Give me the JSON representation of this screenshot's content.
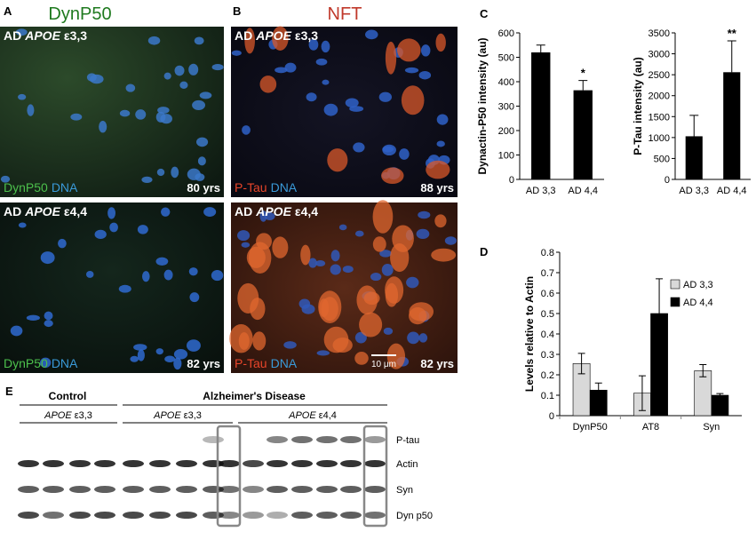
{
  "panels": {
    "a": {
      "label": "A",
      "title": "DynP50",
      "images": [
        {
          "genotype": {
            "group": "AD",
            "gene": "APOE",
            "allele": "ε3,3"
          },
          "stain": [
            "DynP50",
            "DNA"
          ],
          "age": "80 yrs"
        },
        {
          "genotype": {
            "group": "AD",
            "gene": "APOE",
            "allele": "ε4,4"
          },
          "stain": [
            "DynP50",
            "DNA"
          ],
          "age": "82 yrs"
        }
      ]
    },
    "b": {
      "label": "B",
      "title": "NFT",
      "images": [
        {
          "genotype": {
            "group": "AD",
            "gene": "APOE",
            "allele": "ε3,3"
          },
          "stain": [
            "P-Tau",
            "DNA"
          ],
          "age": "88 yrs"
        },
        {
          "genotype": {
            "group": "AD",
            "gene": "APOE",
            "allele": "ε4,4"
          },
          "stain": [
            "P-Tau",
            "DNA"
          ],
          "age": "82 yrs"
        }
      ],
      "scale_bar": "10 μm"
    },
    "c": {
      "label": "C"
    },
    "d": {
      "label": "D"
    },
    "e": {
      "label": "E",
      "groups": [
        "Control",
        "Alzheimer's Disease"
      ],
      "genotypes": [
        {
          "gene": "APOE",
          "allele": "ε3,3"
        },
        {
          "gene": "APOE",
          "allele": "ε3,3"
        },
        {
          "gene": "APOE",
          "allele": "ε4,4"
        }
      ],
      "bands": [
        "P-tau",
        "Actin",
        "Syn",
        "Dyn p50"
      ]
    }
  },
  "chart_data": [
    {
      "type": "bar",
      "ylabel": "Dynactin-P50 intensity (au)",
      "categories": [
        "AD 3,3",
        "AD 4,4"
      ],
      "values": [
        520,
        365
      ],
      "errors": [
        30,
        40
      ],
      "significance": [
        null,
        "*"
      ],
      "color": "#000000",
      "ylim": [
        0,
        600
      ],
      "yticks": [
        0,
        100,
        200,
        300,
        400,
        500,
        600
      ]
    },
    {
      "type": "bar",
      "ylabel": "P-Tau intensity (au)",
      "categories": [
        "AD 3,3",
        "AD 4,4"
      ],
      "values": [
        1030,
        2560
      ],
      "errors": [
        500,
        750
      ],
      "significance": [
        null,
        "**"
      ],
      "color": "#000000",
      "ylim": [
        0,
        3500
      ],
      "yticks": [
        0,
        500,
        1000,
        1500,
        2000,
        2500,
        3000,
        3500
      ]
    },
    {
      "type": "grouped_bar",
      "ylabel": "Levels relative to Actin",
      "categories": [
        "DynP50",
        "AT8",
        "Syn"
      ],
      "series": [
        {
          "name": "AD 3,3",
          "color": "#d9d9d9",
          "values": [
            0.255,
            0.11,
            0.22
          ],
          "errors": [
            0.05,
            0.085,
            0.03
          ]
        },
        {
          "name": "AD 4,4",
          "color": "#000000",
          "values": [
            0.125,
            0.5,
            0.1
          ],
          "errors": [
            0.035,
            0.17,
            0.008
          ]
        }
      ],
      "ylim": [
        0,
        0.8
      ],
      "yticks": [
        0,
        0.1,
        0.2,
        0.3,
        0.4,
        0.5,
        0.6,
        0.7,
        0.8
      ],
      "legend": "upper right"
    }
  ]
}
